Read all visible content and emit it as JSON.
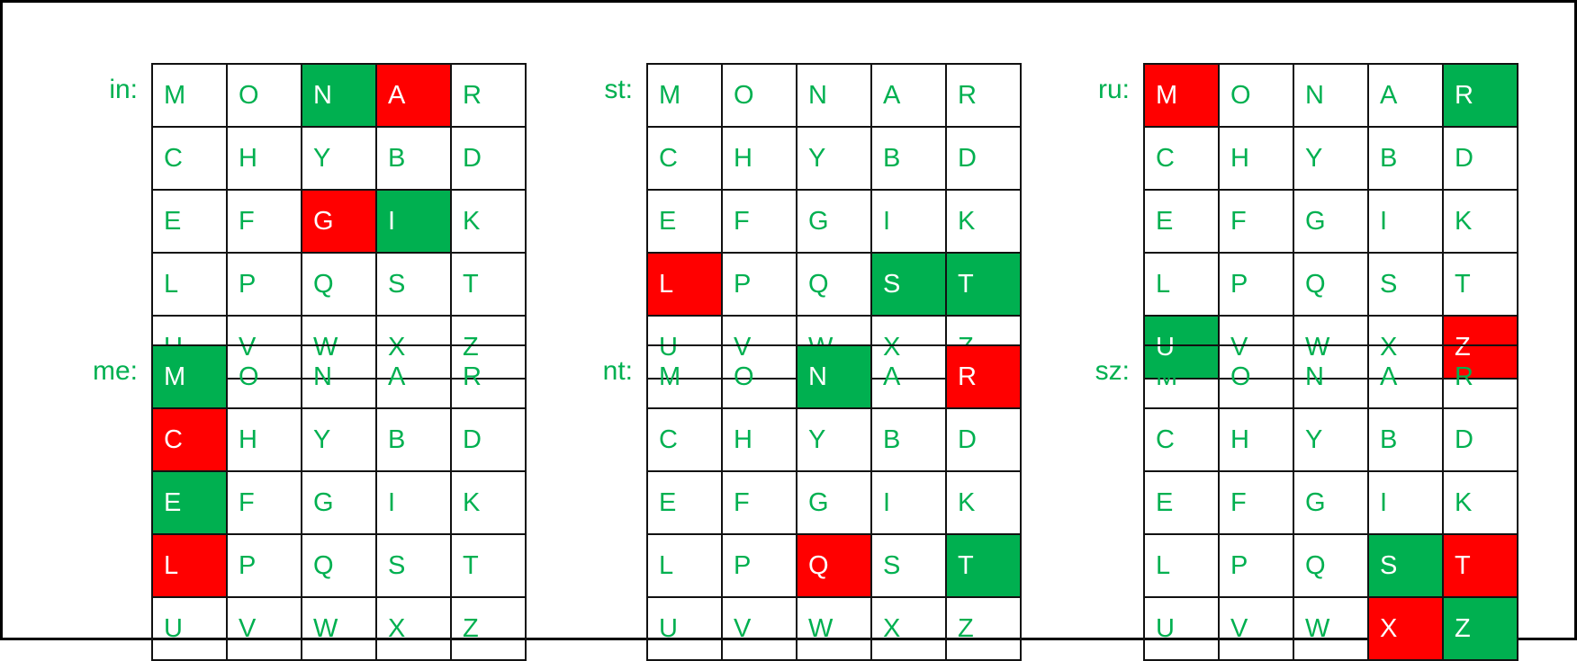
{
  "colors": {
    "letter": "#00B050",
    "green": "#00B050",
    "red": "#FF0000",
    "highlight_text": "#FFFFFF"
  },
  "square": [
    [
      "M",
      "O",
      "N",
      "A",
      "R"
    ],
    [
      "C",
      "H",
      "Y",
      "B",
      "D"
    ],
    [
      "E",
      "F",
      "G",
      "I",
      "K"
    ],
    [
      "L",
      "P",
      "Q",
      "S",
      "T"
    ],
    [
      "U",
      "V",
      "W",
      "X",
      "Z"
    ]
  ],
  "panels": [
    {
      "label": "in:",
      "green": [
        "N",
        "I"
      ],
      "red": [
        "A",
        "G"
      ]
    },
    {
      "label": "st:",
      "green": [
        "S",
        "T"
      ],
      "red": [
        "L"
      ]
    },
    {
      "label": "ru:",
      "green": [
        "R",
        "U"
      ],
      "red": [
        "M",
        "Z"
      ]
    },
    {
      "label": "me:",
      "green": [
        "M",
        "E"
      ],
      "red": [
        "C",
        "L"
      ]
    },
    {
      "label": "nt:",
      "green": [
        "N",
        "T"
      ],
      "red": [
        "R",
        "Q"
      ]
    },
    {
      "label": "sz:",
      "green": [
        "S",
        "Z"
      ],
      "red": [
        "T",
        "X"
      ]
    }
  ]
}
